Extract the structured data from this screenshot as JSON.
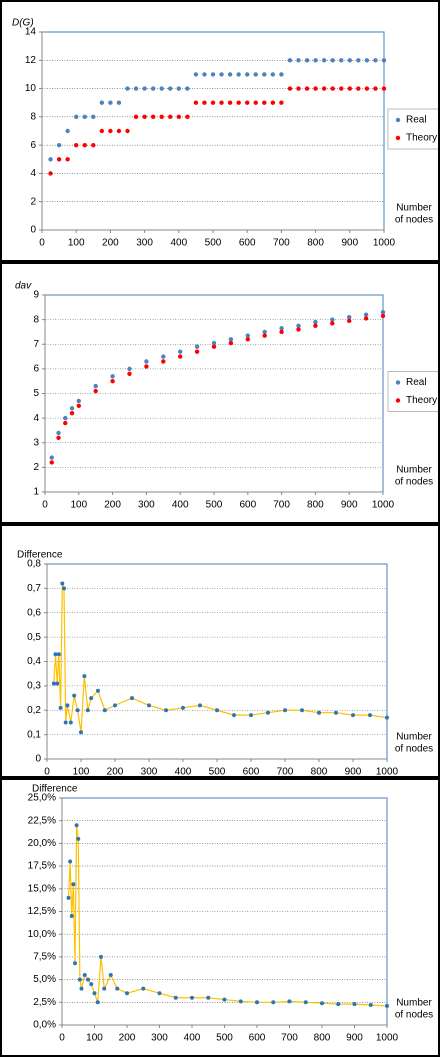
{
  "chart_data": [
    {
      "type": "scatter",
      "ylabel": "D(G)",
      "xlabel": [
        "Number",
        "of nodes"
      ],
      "legend": "right",
      "grid": true,
      "x": [
        25,
        50,
        75,
        100,
        125,
        150,
        175,
        200,
        225,
        250,
        275,
        300,
        325,
        350,
        375,
        400,
        425,
        450,
        475,
        500,
        525,
        550,
        575,
        600,
        625,
        650,
        675,
        700,
        725,
        750,
        775,
        800,
        825,
        850,
        875,
        900,
        925,
        950,
        975,
        1000
      ],
      "xlim": [
        0,
        1000
      ],
      "xticks": [
        0,
        100,
        200,
        300,
        400,
        500,
        600,
        700,
        800,
        900,
        1000
      ],
      "ylim": [
        0,
        14
      ],
      "yticks": [
        0,
        2,
        4,
        6,
        8,
        10,
        12,
        14
      ],
      "series": [
        {
          "name": "Real",
          "color": "#4f81bd",
          "values": [
            5,
            6,
            7,
            8,
            8,
            8,
            9,
            9,
            9,
            10,
            10,
            10,
            10,
            10,
            10,
            10,
            10,
            11,
            11,
            11,
            11,
            11,
            11,
            11,
            11,
            11,
            11,
            11,
            12,
            12,
            12,
            12,
            12,
            12,
            12,
            12,
            12,
            12,
            12,
            12
          ]
        },
        {
          "name": "Theory",
          "color": "#ff0000",
          "values": [
            4,
            5,
            5,
            6,
            6,
            6,
            7,
            7,
            7,
            7,
            8,
            8,
            8,
            8,
            8,
            8,
            8,
            9,
            9,
            9,
            9,
            9,
            9,
            9,
            9,
            9,
            9,
            9,
            10,
            10,
            10,
            10,
            10,
            10,
            10,
            10,
            10,
            10,
            10,
            10
          ]
        }
      ]
    },
    {
      "type": "scatter",
      "ylabel": "dav",
      "xlabel": [
        "Number",
        "of nodes"
      ],
      "legend": "right",
      "grid": true,
      "x": [
        20,
        40,
        60,
        80,
        100,
        150,
        200,
        250,
        300,
        350,
        400,
        450,
        500,
        550,
        600,
        650,
        700,
        750,
        800,
        850,
        900,
        950,
        1000
      ],
      "xlim": [
        0,
        1000
      ],
      "xticks": [
        0,
        100,
        200,
        300,
        400,
        500,
        600,
        700,
        800,
        900,
        1000
      ],
      "ylim": [
        1,
        9
      ],
      "yticks": [
        1,
        2,
        3,
        4,
        5,
        6,
        7,
        8,
        9
      ],
      "series": [
        {
          "name": "Real",
          "color": "#4f81bd",
          "values": [
            2.4,
            3.4,
            4.0,
            4.4,
            4.7,
            5.3,
            5.7,
            6.0,
            6.3,
            6.5,
            6.7,
            6.9,
            7.05,
            7.2,
            7.35,
            7.5,
            7.65,
            7.75,
            7.9,
            8.0,
            8.1,
            8.2,
            8.3
          ]
        },
        {
          "name": "Theory",
          "color": "#ff0000",
          "values": [
            2.2,
            3.2,
            3.8,
            4.2,
            4.5,
            5.1,
            5.5,
            5.8,
            6.1,
            6.3,
            6.5,
            6.7,
            6.9,
            7.05,
            7.2,
            7.35,
            7.5,
            7.6,
            7.75,
            7.85,
            7.95,
            8.05,
            8.15
          ]
        }
      ]
    },
    {
      "type": "line",
      "ylabel": "Difference",
      "xlabel": [
        "Number",
        "of nodes"
      ],
      "grid": true,
      "line_color": "#ffc000",
      "x": [
        20,
        25,
        30,
        35,
        40,
        45,
        50,
        55,
        60,
        70,
        80,
        90,
        100,
        110,
        120,
        130,
        150,
        170,
        200,
        250,
        300,
        350,
        400,
        450,
        500,
        550,
        600,
        650,
        700,
        750,
        800,
        850,
        900,
        950,
        1000
      ],
      "xlim": [
        0,
        1000
      ],
      "xticks": [
        0,
        100,
        200,
        300,
        400,
        500,
        600,
        700,
        800,
        900,
        1000
      ],
      "ylim": [
        0,
        0.8
      ],
      "yticks": [
        0,
        {
          "value": 0.1,
          "label": "0,1"
        },
        {
          "value": 0.2,
          "label": "0,2"
        },
        {
          "value": 0.3,
          "label": "0,3"
        },
        {
          "value": 0.4,
          "label": "0,4"
        },
        {
          "value": 0.5,
          "label": "0,5"
        },
        {
          "value": 0.6,
          "label": "0,6"
        },
        {
          "value": 0.7,
          "label": "0,7"
        },
        {
          "value": 0.8,
          "label": "0,8"
        }
      ],
      "series": [
        {
          "color": "#2e75b6",
          "values": [
            0.31,
            0.43,
            0.31,
            0.43,
            0.21,
            0.72,
            0.7,
            0.15,
            0.22,
            0.15,
            0.26,
            0.2,
            0.11,
            0.34,
            0.2,
            0.25,
            0.28,
            0.2,
            0.22,
            0.25,
            0.22,
            0.2,
            0.21,
            0.22,
            0.2,
            0.18,
            0.18,
            0.19,
            0.2,
            0.2,
            0.19,
            0.19,
            0.18,
            0.18,
            0.17
          ]
        }
      ]
    },
    {
      "type": "line",
      "ylabel": "Difference",
      "xlabel": [
        "Number",
        "of nodes"
      ],
      "grid": true,
      "line_color": "#ffc000",
      "x": [
        20,
        25,
        30,
        35,
        40,
        45,
        50,
        55,
        60,
        70,
        80,
        90,
        100,
        110,
        120,
        130,
        150,
        170,
        200,
        250,
        300,
        350,
        400,
        450,
        500,
        550,
        600,
        650,
        700,
        750,
        800,
        850,
        900,
        950,
        1000
      ],
      "xlim": [
        0,
        1000
      ],
      "xticks": [
        0,
        100,
        200,
        300,
        400,
        500,
        600,
        700,
        800,
        900,
        1000
      ],
      "ylim": [
        0,
        25
      ],
      "yticks": [
        {
          "value": 0,
          "label": "0,0%"
        },
        {
          "value": 2.5,
          "label": "2,5%"
        },
        {
          "value": 5,
          "label": "5,0%"
        },
        {
          "value": 7.5,
          "label": "7,5%"
        },
        {
          "value": 10,
          "label": "10,0%"
        },
        {
          "value": 12.5,
          "label": "12,5%"
        },
        {
          "value": 15,
          "label": "15,0%"
        },
        {
          "value": 17.5,
          "label": "17,5%"
        },
        {
          "value": 20,
          "label": "20,0%"
        },
        {
          "value": 22.5,
          "label": "22,5%"
        },
        {
          "value": 25,
          "label": "25,0%"
        }
      ],
      "series": [
        {
          "color": "#2e75b6",
          "values": [
            14,
            18,
            12,
            15.5,
            6.8,
            22,
            20.5,
            5,
            4,
            5.5,
            5,
            4.5,
            3.5,
            2.5,
            7.5,
            4,
            5.5,
            4,
            3.5,
            4,
            3.5,
            3,
            3,
            3,
            2.8,
            2.6,
            2.5,
            2.5,
            2.6,
            2.5,
            2.4,
            2.3,
            2.3,
            2.2,
            2.1
          ]
        }
      ]
    }
  ]
}
